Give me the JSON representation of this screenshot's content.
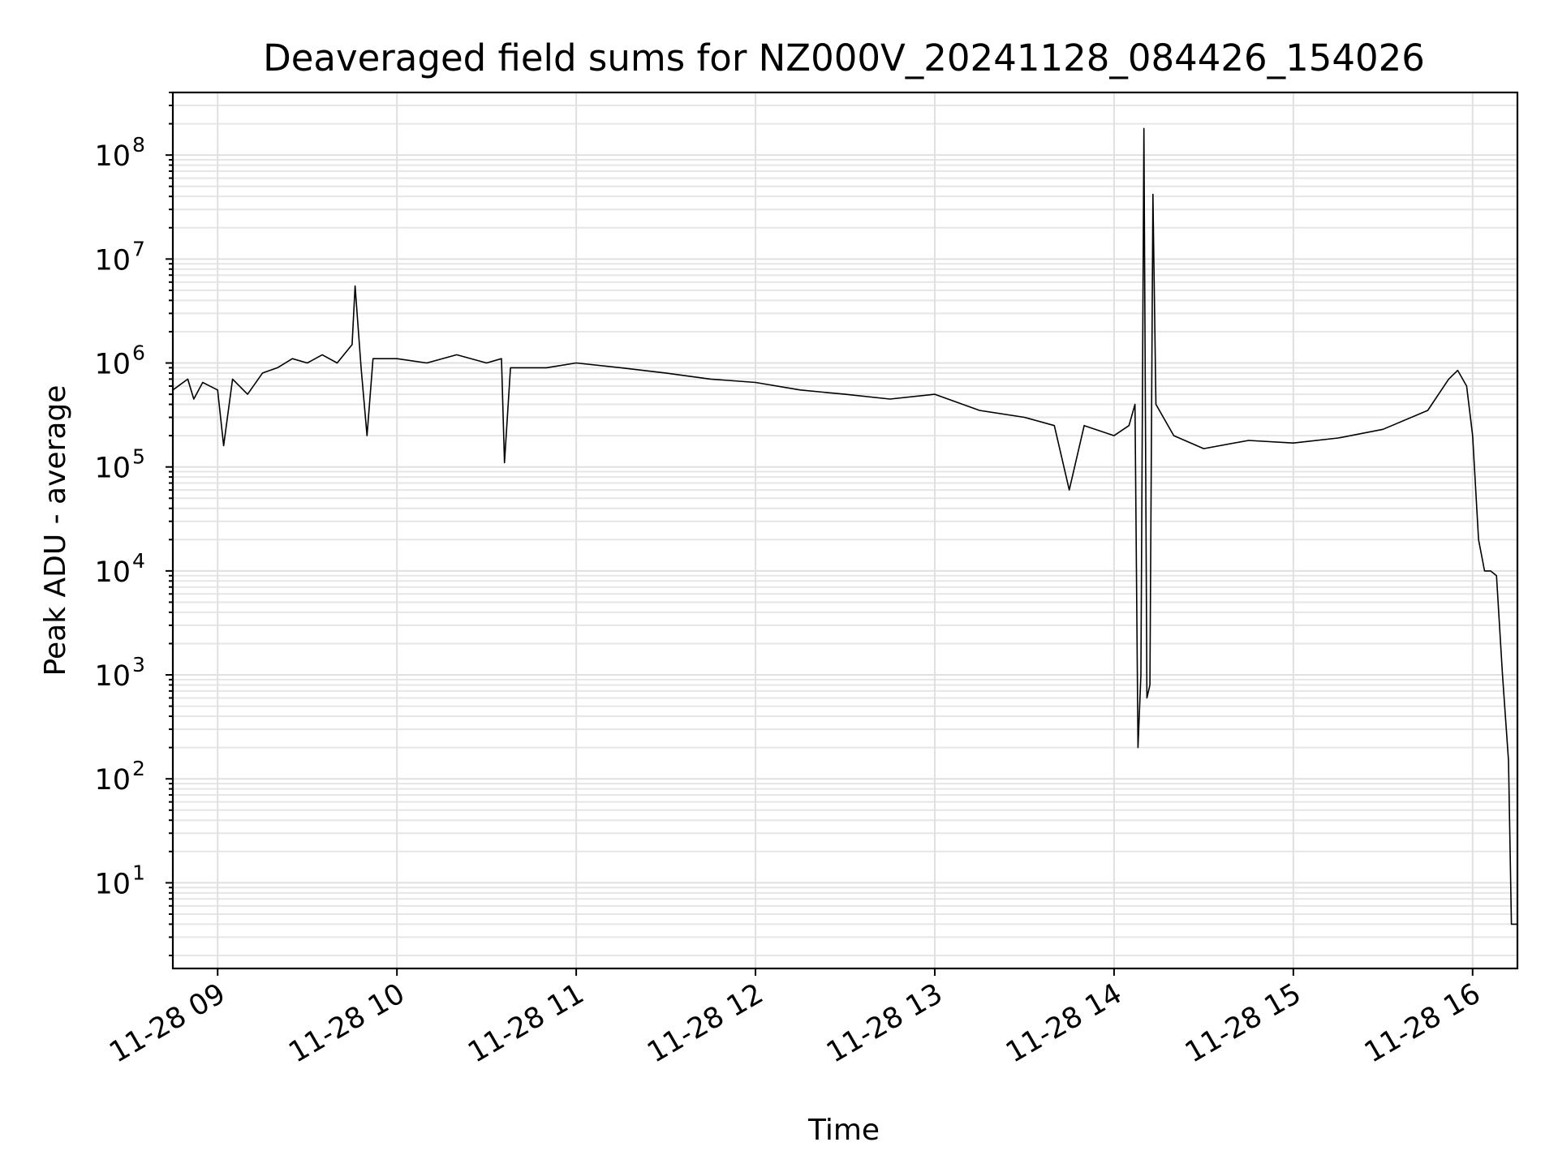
{
  "chart_data": {
    "type": "line",
    "title": "Deaveraged field sums for NZ000V_20241128_084426_154026",
    "xlabel": "Time",
    "ylabel": "Peak ADU - average",
    "yscale": "log",
    "ylim": [
      1.5,
      400000000
    ],
    "xlim": [
      "2024-11-28 08:45:00",
      "2024-11-28 16:15:00"
    ],
    "grid": "on (major and minor)",
    "legend": "none",
    "x_ticks": [
      "11-28 09",
      "11-28 10",
      "11-28 11",
      "11-28 12",
      "11-28 13",
      "11-28 14",
      "11-28 15",
      "11-28 16"
    ],
    "x_tick_times": [
      "2024-11-28 09:00",
      "2024-11-28 10:00",
      "2024-11-28 11:00",
      "2024-11-28 12:00",
      "2024-11-28 13:00",
      "2024-11-28 14:00",
      "2024-11-28 15:00",
      "2024-11-28 16:00"
    ],
    "y_ticks": [
      {
        "base": "10",
        "exp": "1",
        "value": 10
      },
      {
        "base": "10",
        "exp": "2",
        "value": 100
      },
      {
        "base": "10",
        "exp": "3",
        "value": 1000
      },
      {
        "base": "10",
        "exp": "4",
        "value": 10000
      },
      {
        "base": "10",
        "exp": "5",
        "value": 100000
      },
      {
        "base": "10",
        "exp": "6",
        "value": 1000000
      },
      {
        "base": "10",
        "exp": "7",
        "value": 10000000
      },
      {
        "base": "10",
        "exp": "8",
        "value": 100000000
      }
    ],
    "series": [
      {
        "color": "#000000",
        "points": [
          [
            "2024-11-28 08:45",
            550000
          ],
          [
            "2024-11-28 08:50",
            700000
          ],
          [
            "2024-11-28 08:52",
            450000
          ],
          [
            "2024-11-28 08:55",
            650000
          ],
          [
            "2024-11-28 09:00",
            550000
          ],
          [
            "2024-11-28 09:02",
            160000
          ],
          [
            "2024-11-28 09:05",
            700000
          ],
          [
            "2024-11-28 09:10",
            500000
          ],
          [
            "2024-11-28 09:15",
            800000
          ],
          [
            "2024-11-28 09:20",
            900000
          ],
          [
            "2024-11-28 09:25",
            1100000
          ],
          [
            "2024-11-28 09:30",
            1000000
          ],
          [
            "2024-11-28 09:35",
            1200000
          ],
          [
            "2024-11-28 09:40",
            1000000
          ],
          [
            "2024-11-28 09:45",
            1500000
          ],
          [
            "2024-11-28 09:46",
            5500000
          ],
          [
            "2024-11-28 09:48",
            900000
          ],
          [
            "2024-11-28 09:50",
            200000
          ],
          [
            "2024-11-28 09:52",
            1100000
          ],
          [
            "2024-11-28 10:00",
            1100000
          ],
          [
            "2024-11-28 10:10",
            1000000
          ],
          [
            "2024-11-28 10:20",
            1200000
          ],
          [
            "2024-11-28 10:30",
            1000000
          ],
          [
            "2024-11-28 10:35",
            1100000
          ],
          [
            "2024-11-28 10:36",
            110000
          ],
          [
            "2024-11-28 10:38",
            900000
          ],
          [
            "2024-11-28 10:50",
            900000
          ],
          [
            "2024-11-28 11:00",
            1000000
          ],
          [
            "2024-11-28 11:15",
            900000
          ],
          [
            "2024-11-28 11:30",
            800000
          ],
          [
            "2024-11-28 11:45",
            700000
          ],
          [
            "2024-11-28 12:00",
            650000
          ],
          [
            "2024-11-28 12:15",
            550000
          ],
          [
            "2024-11-28 12:30",
            500000
          ],
          [
            "2024-11-28 12:45",
            450000
          ],
          [
            "2024-11-28 13:00",
            500000
          ],
          [
            "2024-11-28 13:15",
            350000
          ],
          [
            "2024-11-28 13:30",
            300000
          ],
          [
            "2024-11-28 13:40",
            250000
          ],
          [
            "2024-11-28 13:45",
            60000
          ],
          [
            "2024-11-28 13:50",
            250000
          ],
          [
            "2024-11-28 14:00",
            200000
          ],
          [
            "2024-11-28 14:05",
            250000
          ],
          [
            "2024-11-28 14:07",
            400000
          ],
          [
            "2024-11-28 14:08",
            200
          ],
          [
            "2024-11-28 14:09",
            1000
          ],
          [
            "2024-11-28 14:10",
            180000000
          ],
          [
            "2024-11-28 14:11",
            600
          ],
          [
            "2024-11-28 14:12",
            800
          ],
          [
            "2024-11-28 14:13",
            42000000
          ],
          [
            "2024-11-28 14:14",
            400000
          ],
          [
            "2024-11-28 14:20",
            200000
          ],
          [
            "2024-11-28 14:30",
            150000
          ],
          [
            "2024-11-28 14:45",
            180000
          ],
          [
            "2024-11-28 15:00",
            170000
          ],
          [
            "2024-11-28 15:15",
            190000
          ],
          [
            "2024-11-28 15:30",
            230000
          ],
          [
            "2024-11-28 15:45",
            350000
          ],
          [
            "2024-11-28 15:52",
            700000
          ],
          [
            "2024-11-28 15:55",
            850000
          ],
          [
            "2024-11-28 15:58",
            600000
          ],
          [
            "2024-11-28 16:00",
            200000
          ],
          [
            "2024-11-28 16:02",
            20000
          ],
          [
            "2024-11-28 16:04",
            10000
          ],
          [
            "2024-11-28 16:06",
            10000
          ],
          [
            "2024-11-28 16:08",
            9000
          ],
          [
            "2024-11-28 16:10",
            1000
          ],
          [
            "2024-11-28 16:12",
            150
          ],
          [
            "2024-11-28 16:13",
            4
          ],
          [
            "2024-11-28 16:15",
            4
          ]
        ]
      }
    ]
  }
}
